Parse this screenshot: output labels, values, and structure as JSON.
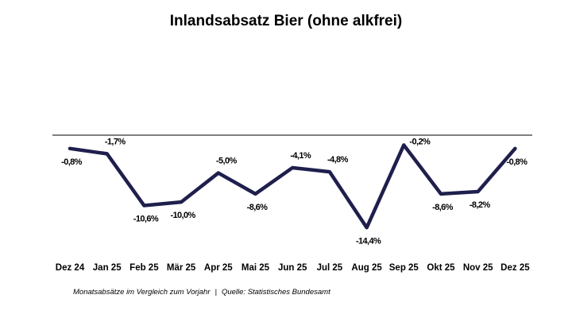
{
  "colors": {
    "line": "#1f1f4d",
    "axis": "#000000",
    "text": "#000000",
    "background": "#ffffff"
  },
  "chart_data": {
    "type": "line",
    "title": "Inlandsabsatz Bier (ohne alkfrei)",
    "xlabel": "",
    "ylabel": "",
    "categories": [
      "Dez 24",
      "Jan 25",
      "Feb 25",
      "Mär 25",
      "Apr 25",
      "Mai 25",
      "Jun 25",
      "Jul 25",
      "Aug 25",
      "Sep 25",
      "Okt 25",
      "Nov 25",
      "Dez 25"
    ],
    "values": [
      -0.8,
      -1.7,
      -10.6,
      -10.0,
      -5.0,
      -8.6,
      -4.1,
      -4.8,
      -14.4,
      -0.2,
      -8.6,
      -8.2,
      -0.8
    ],
    "data_labels": [
      "-0,8%",
      "-1,7%",
      "-10,6%",
      "-10,0%",
      "-5,0%",
      "-8,6%",
      "-4,1%",
      "-4,8%",
      "-14,4%",
      "-0,2%",
      "-8,6%",
      "-8,2%",
      "-0,8%"
    ],
    "label_positions": [
      "below",
      "above",
      "below",
      "below",
      "above",
      "below",
      "above",
      "above",
      "below",
      "right",
      "below",
      "below",
      "below"
    ],
    "ylim": [
      -16,
      1.5
    ],
    "grid": false,
    "legend": "none"
  },
  "footnote": {
    "description": "Monatsabsätze im Vergleich zum Vorjahr",
    "separator": "|",
    "source": "Quelle: Statistisches Bundesamt"
  }
}
